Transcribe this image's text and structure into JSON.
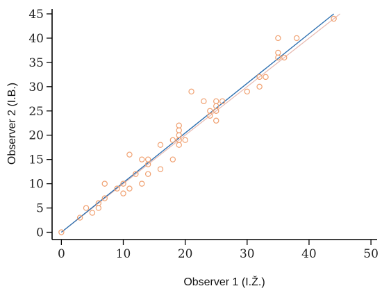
{
  "chart_data": {
    "type": "scatter",
    "xlabel": "Observer 1 (I.Ž.)",
    "ylabel": "Observer 2 (I.B.)",
    "xlim": [
      -1.5,
      51
    ],
    "ylim": [
      -1.5,
      46
    ],
    "xticks": [
      0,
      10,
      20,
      30,
      40,
      50
    ],
    "yticks": [
      0,
      5,
      10,
      15,
      20,
      25,
      30,
      35,
      40,
      45
    ],
    "grid": false,
    "colors": {
      "points": "#F0A070",
      "fit_line": "#2C6FB0",
      "identity_line": "#E7B9B0",
      "axis": "#000000"
    },
    "series": [
      {
        "values": [
          [
            0,
            0
          ],
          [
            3,
            3
          ],
          [
            4,
            5
          ],
          [
            5,
            4
          ],
          [
            6,
            5
          ],
          [
            6,
            6
          ],
          [
            7,
            7
          ],
          [
            7,
            10
          ],
          [
            9,
            9
          ],
          [
            10,
            8
          ],
          [
            10,
            10
          ],
          [
            11,
            9
          ],
          [
            11,
            16
          ],
          [
            12,
            12
          ],
          [
            13,
            10
          ],
          [
            13,
            15
          ],
          [
            14,
            12
          ],
          [
            14,
            14
          ],
          [
            14,
            15
          ],
          [
            16,
            13
          ],
          [
            16,
            18
          ],
          [
            18,
            15
          ],
          [
            18,
            19
          ],
          [
            19,
            18
          ],
          [
            19,
            19
          ],
          [
            19,
            20
          ],
          [
            19,
            21
          ],
          [
            19,
            22
          ],
          [
            20,
            19
          ],
          [
            21,
            29
          ],
          [
            23,
            27
          ],
          [
            24,
            24
          ],
          [
            24,
            25
          ],
          [
            25,
            23
          ],
          [
            25,
            25
          ],
          [
            25,
            26
          ],
          [
            25,
            27
          ],
          [
            26,
            27
          ],
          [
            30,
            29
          ],
          [
            32,
            30
          ],
          [
            32,
            32
          ],
          [
            33,
            32
          ],
          [
            35,
            36
          ],
          [
            35,
            37
          ],
          [
            35,
            40
          ],
          [
            36,
            36
          ],
          [
            38,
            40
          ],
          [
            44,
            44
          ]
        ]
      }
    ],
    "lines": [
      {
        "kind": "regression",
        "from": [
          0,
          0
        ],
        "to": [
          44,
          45
        ]
      },
      {
        "kind": "identity",
        "from": [
          0,
          0
        ],
        "to": [
          45,
          45
        ]
      }
    ]
  }
}
